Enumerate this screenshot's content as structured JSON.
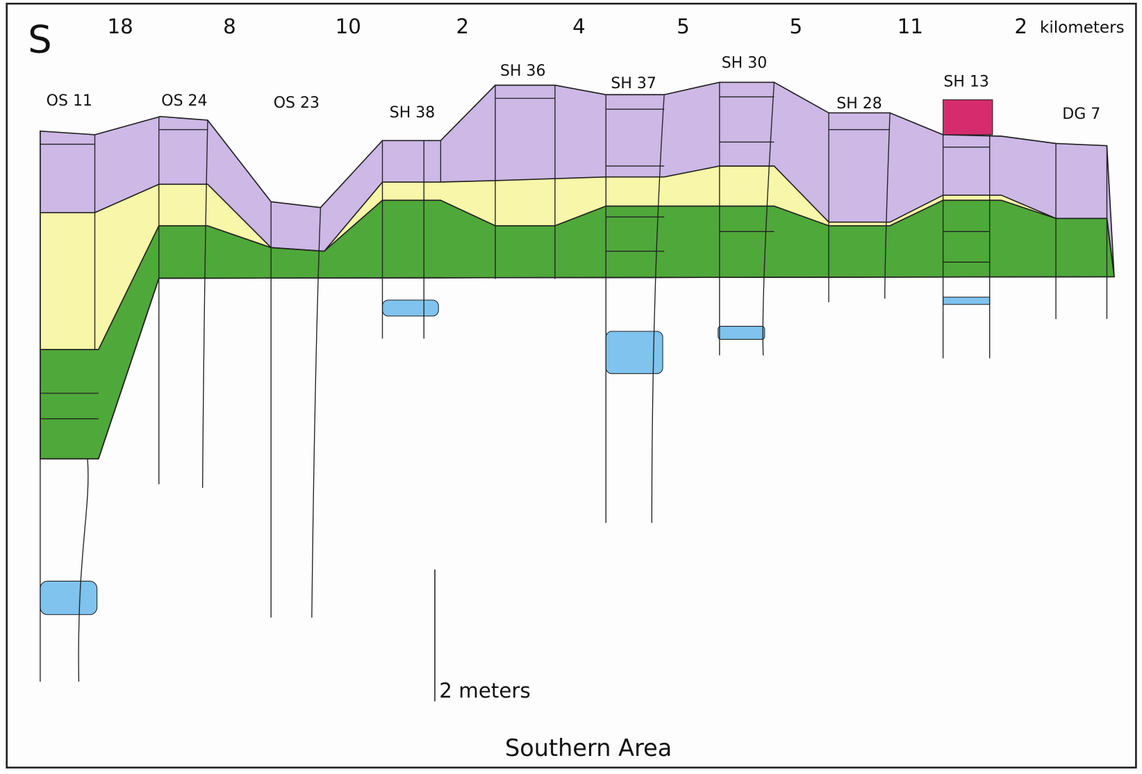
{
  "header": {
    "direction": "S",
    "distances": [
      18,
      8,
      10,
      2,
      4,
      5,
      5,
      11,
      2
    ],
    "distance_unit": "kilometers"
  },
  "sections": [
    "OS 11",
    "OS 24",
    "OS 23",
    "SH 38",
    "SH 36",
    "SH 37",
    "SH 30",
    "SH 28",
    "SH 13",
    "DG 7"
  ],
  "scale": {
    "label": "2 meters"
  },
  "title": "Southern Area"
}
